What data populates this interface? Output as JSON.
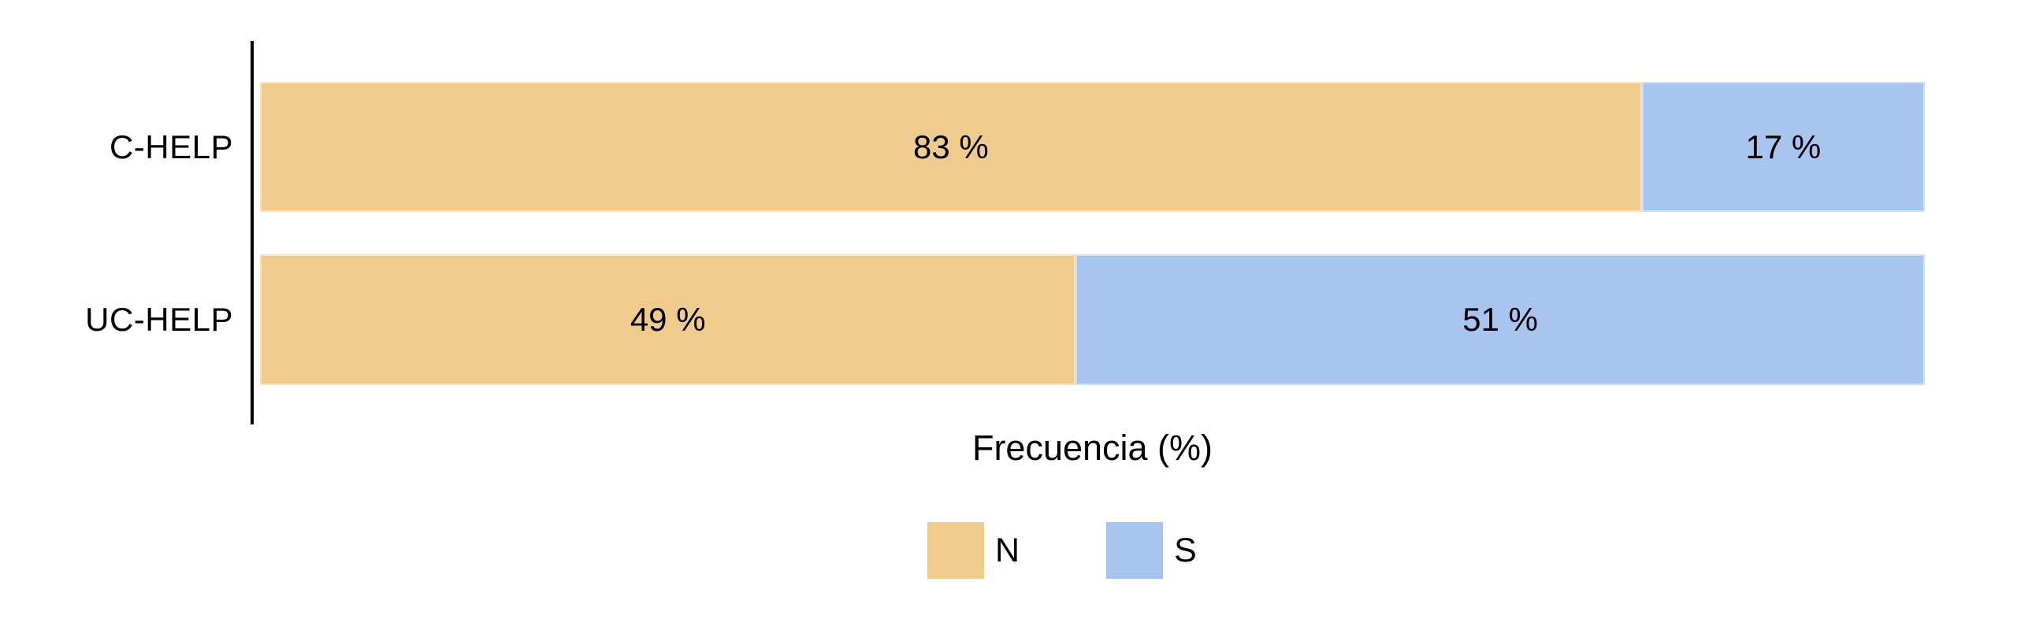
{
  "chart_data": {
    "type": "bar",
    "orientation": "horizontal",
    "stacked": true,
    "title": "",
    "xlabel": "Frecuencia (%)",
    "ylabel": "",
    "xlim": [
      0,
      100
    ],
    "grid": false,
    "legend_position": "bottom",
    "categories": [
      "C-HELP",
      "UC-HELP"
    ],
    "series": [
      {
        "name": "N",
        "color": "#f0cb8e",
        "values": [
          83,
          49
        ]
      },
      {
        "name": "S",
        "color": "#a7c5ee",
        "values": [
          17,
          51
        ]
      }
    ],
    "value_labels": [
      [
        "83 %",
        "17 %"
      ],
      [
        "49 %",
        "51 %"
      ]
    ]
  },
  "colors": {
    "background": "#ffffff",
    "axis_line": "#000000",
    "text": "#000000"
  }
}
